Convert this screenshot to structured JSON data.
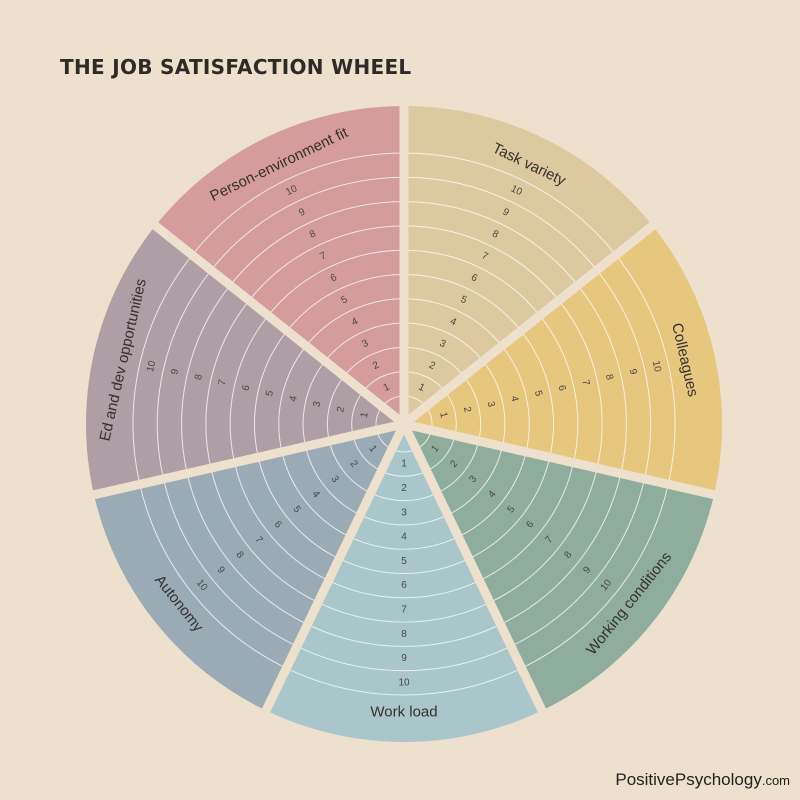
{
  "title": "THE JOB SATISFACTION WHEEL",
  "brand": {
    "main": "PositivePsychology",
    "suffix": ".com"
  },
  "scale": [
    "1",
    "2",
    "3",
    "4",
    "5",
    "6",
    "7",
    "8",
    "9",
    "10"
  ],
  "segments": [
    {
      "id": "task-variety",
      "label": "Task variety",
      "color": "#dcc9a0"
    },
    {
      "id": "colleagues",
      "label": "Colleagues",
      "color": "#e7c67e"
    },
    {
      "id": "working-conditions",
      "label": "Working conditions",
      "color": "#8fad9d"
    },
    {
      "id": "work-load",
      "label": "Work load",
      "color": "#a9c6cb"
    },
    {
      "id": "autonomy",
      "label": "Autonomy",
      "color": "#9aabb6"
    },
    {
      "id": "ed-and-dev-opportunities",
      "label": "Ed and dev opportunities",
      "color": "#ae9ea5"
    },
    {
      "id": "person-environment-fit",
      "label": "Person-environment fit",
      "color": "#d49c9c"
    }
  ]
}
